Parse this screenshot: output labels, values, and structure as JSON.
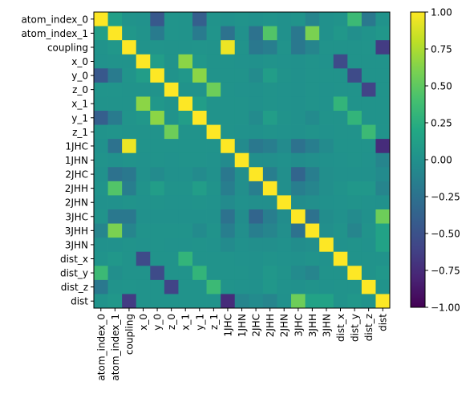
{
  "chart_data": {
    "type": "heatmap",
    "title": "",
    "xlabel": "",
    "ylabel": "",
    "labels": [
      "atom_index_0",
      "atom_index_1",
      "coupling",
      "x_0",
      "y_0",
      "z_0",
      "x_1",
      "y_1",
      "z_1",
      "1JHC",
      "1JHN",
      "2JHC",
      "2JHH",
      "2JHN",
      "3JHC",
      "3JHH",
      "3JHN",
      "dist_x",
      "dist_y",
      "dist_z",
      "dist"
    ],
    "matrix": [
      [
        1.0,
        0.12,
        0.02,
        0.01,
        -0.45,
        0.03,
        0.02,
        -0.4,
        0.02,
        0.0,
        0.02,
        0.0,
        0.02,
        0.0,
        0.02,
        -0.1,
        0.0,
        0.02,
        0.35,
        -0.2,
        0.02
      ],
      [
        0.12,
        1.0,
        0.05,
        0.02,
        -0.18,
        0.03,
        0.02,
        -0.18,
        0.03,
        -0.25,
        0.0,
        -0.25,
        0.45,
        0.0,
        -0.2,
        0.6,
        0.0,
        0.05,
        -0.02,
        0.02,
        0.05
      ],
      [
        0.02,
        0.05,
        1.0,
        0.02,
        0.03,
        0.02,
        0.02,
        0.03,
        0.02,
        0.95,
        0.02,
        -0.2,
        -0.15,
        0.02,
        -0.2,
        -0.1,
        0.02,
        0.02,
        0.02,
        0.03,
        -0.65
      ],
      [
        0.01,
        0.02,
        0.02,
        1.0,
        0.1,
        0.02,
        0.65,
        0.05,
        0.02,
        0.02,
        0.01,
        0.0,
        0.02,
        0.01,
        0.0,
        0.02,
        0.01,
        -0.55,
        0.02,
        0.02,
        0.02
      ],
      [
        -0.45,
        -0.18,
        0.03,
        0.1,
        1.0,
        0.02,
        0.05,
        0.65,
        0.02,
        0.02,
        0.02,
        -0.05,
        0.1,
        0.02,
        0.0,
        0.02,
        0.02,
        0.02,
        -0.55,
        0.02,
        0.02
      ],
      [
        0.03,
        0.03,
        0.02,
        0.02,
        0.02,
        1.0,
        0.02,
        0.02,
        0.55,
        0.02,
        0.01,
        0.0,
        0.02,
        0.01,
        0.0,
        0.02,
        0.01,
        0.02,
        0.02,
        -0.6,
        0.02
      ],
      [
        0.02,
        0.02,
        0.02,
        0.65,
        0.05,
        0.02,
        1.0,
        0.1,
        0.02,
        0.02,
        0.02,
        0.0,
        0.02,
        0.01,
        0.0,
        0.02,
        0.01,
        0.3,
        0.02,
        0.02,
        0.02
      ],
      [
        -0.4,
        -0.18,
        0.03,
        0.05,
        0.65,
        0.02,
        0.1,
        1.0,
        0.02,
        0.02,
        0.02,
        -0.05,
        0.1,
        0.02,
        0.0,
        -0.05,
        0.02,
        0.02,
        0.3,
        0.02,
        0.02
      ],
      [
        0.02,
        0.03,
        0.02,
        0.02,
        0.02,
        0.55,
        0.02,
        0.02,
        1.0,
        0.02,
        0.01,
        0.0,
        0.02,
        0.01,
        0.0,
        0.02,
        0.01,
        0.02,
        0.02,
        0.35,
        0.02
      ],
      [
        0.0,
        -0.25,
        0.95,
        0.02,
        0.02,
        0.02,
        0.02,
        0.02,
        0.02,
        1.0,
        -0.05,
        -0.2,
        -0.15,
        -0.05,
        -0.25,
        -0.15,
        -0.05,
        0.02,
        0.02,
        0.02,
        -0.75
      ],
      [
        0.02,
        0.0,
        0.02,
        0.01,
        0.02,
        0.01,
        0.02,
        0.02,
        0.01,
        -0.05,
        1.0,
        -0.02,
        -0.02,
        0.0,
        -0.03,
        -0.02,
        0.0,
        0.01,
        0.02,
        0.01,
        -0.1
      ],
      [
        0.0,
        -0.25,
        -0.2,
        0.0,
        -0.05,
        0.0,
        0.0,
        -0.05,
        0.0,
        -0.2,
        -0.02,
        1.0,
        -0.15,
        -0.02,
        -0.35,
        -0.15,
        -0.02,
        0.0,
        0.0,
        0.0,
        -0.05
      ],
      [
        0.02,
        0.45,
        -0.15,
        0.02,
        0.1,
        0.02,
        0.02,
        0.1,
        0.02,
        -0.15,
        -0.02,
        -0.15,
        1.0,
        -0.02,
        -0.15,
        -0.1,
        -0.02,
        0.02,
        0.05,
        0.05,
        -0.1
      ],
      [
        0.0,
        0.0,
        0.02,
        0.01,
        0.02,
        0.01,
        0.01,
        0.02,
        0.01,
        -0.05,
        0.0,
        -0.02,
        -0.02,
        1.0,
        -0.03,
        -0.02,
        0.0,
        0.01,
        0.02,
        0.01,
        0.0
      ],
      [
        0.02,
        -0.2,
        -0.2,
        0.0,
        0.0,
        0.0,
        0.0,
        0.0,
        0.0,
        -0.25,
        -0.03,
        -0.35,
        -0.15,
        -0.03,
        1.0,
        -0.25,
        -0.03,
        0.0,
        -0.05,
        0.0,
        0.55
      ],
      [
        -0.1,
        0.6,
        -0.1,
        0.02,
        0.02,
        0.02,
        0.02,
        -0.05,
        0.02,
        -0.15,
        -0.02,
        -0.15,
        -0.1,
        -0.02,
        -0.25,
        1.0,
        -0.02,
        0.02,
        -0.1,
        0.02,
        0.15
      ],
      [
        0.0,
        0.0,
        0.02,
        0.01,
        0.02,
        0.01,
        0.01,
        0.02,
        0.01,
        -0.05,
        0.0,
        -0.02,
        -0.02,
        0.0,
        -0.03,
        -0.02,
        1.0,
        0.01,
        0.02,
        0.01,
        0.15
      ],
      [
        0.02,
        0.05,
        0.02,
        -0.55,
        0.02,
        0.02,
        0.3,
        0.02,
        0.02,
        0.02,
        0.01,
        0.0,
        0.02,
        0.01,
        0.0,
        0.02,
        0.01,
        1.0,
        0.02,
        0.02,
        0.02
      ],
      [
        0.35,
        -0.02,
        0.02,
        0.02,
        -0.55,
        0.02,
        0.02,
        0.3,
        0.02,
        0.02,
        0.02,
        0.0,
        0.05,
        0.02,
        -0.05,
        -0.1,
        0.02,
        0.02,
        1.0,
        0.02,
        0.05
      ],
      [
        -0.2,
        0.02,
        0.03,
        0.02,
        0.02,
        -0.6,
        0.02,
        0.02,
        0.35,
        0.02,
        0.01,
        0.0,
        0.05,
        0.01,
        0.0,
        0.02,
        0.01,
        0.02,
        0.02,
        1.0,
        0.02
      ],
      [
        0.02,
        0.05,
        -0.65,
        0.02,
        0.02,
        0.02,
        0.02,
        0.02,
        0.02,
        -0.75,
        -0.1,
        -0.05,
        -0.1,
        0.0,
        0.55,
        0.15,
        0.15,
        0.02,
        0.05,
        0.02,
        1.0
      ]
    ],
    "colorscale": "viridis",
    "vmin": -1.0,
    "vmax": 1.0,
    "colorbar_ticks": [
      "1.00",
      "0.75",
      "0.50",
      "0.25",
      "0.00",
      "−0.25",
      "−0.50",
      "−0.75",
      "−1.00"
    ]
  }
}
